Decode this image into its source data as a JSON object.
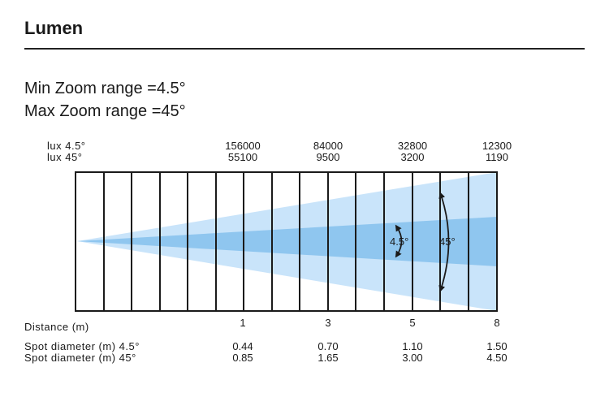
{
  "header": {
    "title": "Lumen"
  },
  "zoom": {
    "min_label": "Min Zoom range =4.5°",
    "max_label": "Max Zoom range =45°"
  },
  "lux": {
    "label_narrow": "lux 4.5°",
    "label_wide": "lux 45°",
    "columns": [
      {
        "narrow": "156000",
        "wide": "55100"
      },
      {
        "narrow": "84000",
        "wide": "9500"
      },
      {
        "narrow": "32800",
        "wide": "3200"
      },
      {
        "narrow": "12300",
        "wide": "1190"
      }
    ]
  },
  "distance": {
    "label": "Distance (m)",
    "values": [
      "1",
      "3",
      "5",
      "8"
    ]
  },
  "spot": {
    "label_narrow": "Spot diameter (m) 4.5°",
    "label_wide": "Spot diameter (m) 45°",
    "columns": [
      {
        "narrow": "0.44",
        "wide": "0.85"
      },
      {
        "narrow": "0.70",
        "wide": "1.65"
      },
      {
        "narrow": "1.10",
        "wide": "3.00"
      },
      {
        "narrow": "1.50",
        "wide": "4.50"
      }
    ]
  },
  "beam": {
    "narrow_angle_label": "4.5°",
    "wide_angle_label": "45°",
    "colors": {
      "wide": "#c9e4fa",
      "narrow": "#8fc6ef",
      "line": "#1a1a1a"
    }
  }
}
